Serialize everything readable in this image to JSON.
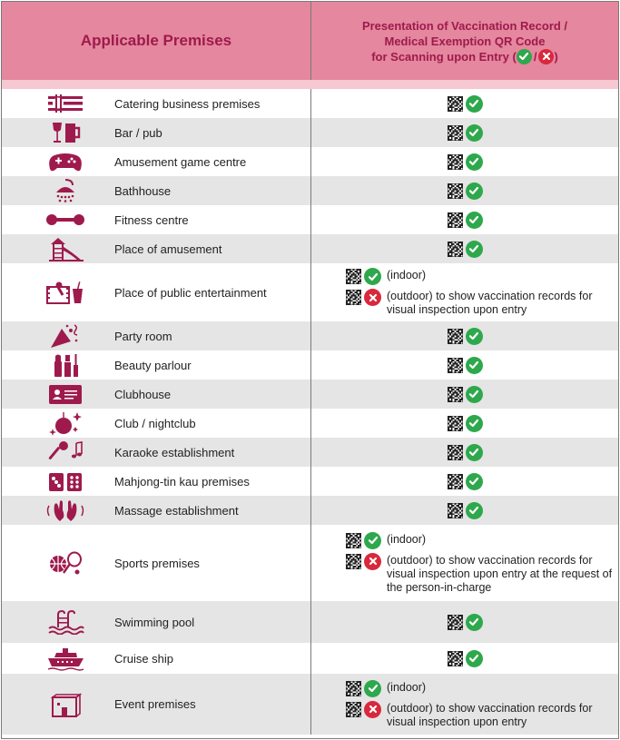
{
  "header": {
    "left_title": "Applicable Premises",
    "right_line1": "Presentation of Vaccination Record /",
    "right_line2": "Medical Exemption QR Code",
    "right_line3_prefix": "for Scanning upon Entry (",
    "right_line3_sep": "/",
    "right_line3_suffix": ")"
  },
  "colors": {
    "header_bg": "#e5879e",
    "header_text": "#9e1a4d",
    "strip": "#f6c8d2",
    "alt_row": "#e5e5e5",
    "icon": "#9e1a4d",
    "tick": "#2ea84c",
    "cross": "#d8283c"
  },
  "rows": [
    {
      "name": "Catering business premises",
      "icon": "cutlery-icon"
    },
    {
      "name": "Bar / pub",
      "icon": "wine-beer-icon"
    },
    {
      "name": "Amusement game centre",
      "icon": "gamepad-icon"
    },
    {
      "name": "Bathhouse",
      "icon": "shower-icon"
    },
    {
      "name": "Fitness centre",
      "icon": "dumbbell-icon"
    },
    {
      "name": "Place of amusement",
      "icon": "playground-icon"
    },
    {
      "name": "Place of public entertainment",
      "icon": "film-drink-icon",
      "indoor": "(indoor)",
      "outdoor": "(outdoor) to show vaccination records for visual inspection upon entry"
    },
    {
      "name": "Party room",
      "icon": "party-icon"
    },
    {
      "name": "Beauty parlour",
      "icon": "cosmetics-icon"
    },
    {
      "name": "Clubhouse",
      "icon": "member-card-icon"
    },
    {
      "name": "Club / nightclub",
      "icon": "disco-ball-icon"
    },
    {
      "name": "Karaoke establishment",
      "icon": "microphone-icon"
    },
    {
      "name": "Mahjong-tin kau premises",
      "icon": "mahjong-icon"
    },
    {
      "name": "Massage establishment",
      "icon": "massage-hands-icon"
    },
    {
      "name": "Sports premises",
      "icon": "sports-balls-icon",
      "indoor": "(indoor)",
      "outdoor": "(outdoor) to show vaccination records for visual inspection upon entry at the request of the person-in-charge"
    },
    {
      "name": "Swimming pool",
      "icon": "pool-ladder-icon"
    },
    {
      "name": "Cruise ship",
      "icon": "cruise-ship-icon"
    },
    {
      "name": "Event premises",
      "icon": "event-booth-icon",
      "indoor": "(indoor)",
      "outdoor": "(outdoor) to show vaccination records for visual inspection upon entry"
    }
  ]
}
